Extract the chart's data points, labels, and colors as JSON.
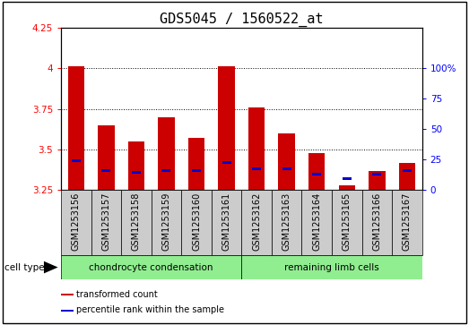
{
  "title": "GDS5045 / 1560522_at",
  "samples": [
    "GSM1253156",
    "GSM1253157",
    "GSM1253158",
    "GSM1253159",
    "GSM1253160",
    "GSM1253161",
    "GSM1253162",
    "GSM1253163",
    "GSM1253164",
    "GSM1253165",
    "GSM1253166",
    "GSM1253167"
  ],
  "red_values": [
    4.01,
    3.65,
    3.55,
    3.7,
    3.57,
    4.01,
    3.76,
    3.6,
    3.48,
    3.28,
    3.37,
    3.42
  ],
  "blue_values": [
    3.43,
    3.37,
    3.36,
    3.37,
    3.37,
    3.42,
    3.38,
    3.38,
    3.35,
    3.32,
    3.35,
    3.37
  ],
  "y_min": 3.25,
  "y_max": 4.25,
  "y_ticks": [
    3.25,
    3.5,
    3.75,
    4.0,
    4.25
  ],
  "y_tick_labels": [
    "3.25",
    "3.5",
    "3.75",
    "4",
    "4.25"
  ],
  "right_y_ticks_vals": [
    3.25,
    3.4375,
    3.625,
    3.8125,
    4.0
  ],
  "right_y_labels": [
    "0",
    "25",
    "50",
    "75",
    "100%"
  ],
  "bar_width": 0.55,
  "blue_bar_width": 0.3,
  "blue_bar_height": 0.015,
  "red_color": "#cc0000",
  "blue_color": "#0000cc",
  "group1_label": "chondrocyte condensation",
  "group2_label": "remaining limb cells",
  "group1_indices": [
    0,
    1,
    2,
    3,
    4,
    5
  ],
  "group2_indices": [
    6,
    7,
    8,
    9,
    10,
    11
  ],
  "cell_type_label": "cell type",
  "legend1": "transformed count",
  "legend2": "percentile rank within the sample",
  "gray_color": "#cccccc",
  "green_color": "#90ee90",
  "title_fontsize": 11,
  "tick_fontsize": 7.5,
  "label_fontsize": 7,
  "group_fontsize": 7.5,
  "legend_fontsize": 7
}
